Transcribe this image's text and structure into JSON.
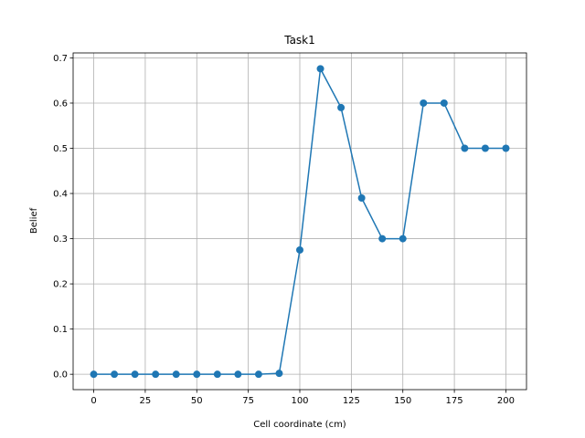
{
  "chart_data": {
    "type": "line",
    "title": "Task1",
    "xlabel": "Cell coordinate (cm)",
    "ylabel": "Belief",
    "xlim": [
      -10,
      210
    ],
    "ylim": [
      -0.034,
      0.711
    ],
    "xticks": [
      0,
      25,
      50,
      75,
      100,
      125,
      150,
      175,
      200
    ],
    "xtick_labels": [
      "0",
      "25",
      "50",
      "75",
      "100",
      "125",
      "150",
      "175",
      "200"
    ],
    "yticks": [
      0.0,
      0.1,
      0.2,
      0.3,
      0.4,
      0.5,
      0.6,
      0.7
    ],
    "ytick_labels": [
      "0.0",
      "0.1",
      "0.2",
      "0.3",
      "0.4",
      "0.5",
      "0.6",
      "0.7"
    ],
    "grid": true,
    "series": [
      {
        "color": "#1f77b4",
        "marker": "circle",
        "x": [
          0,
          10,
          20,
          30,
          40,
          50,
          60,
          70,
          80,
          90,
          100,
          110,
          120,
          130,
          140,
          150,
          160,
          170,
          180,
          190,
          200
        ],
        "y": [
          0,
          0,
          0,
          0,
          0,
          0,
          0,
          0,
          0,
          0.002,
          0.275,
          0.676,
          0.59,
          0.39,
          0.3,
          0.3,
          0.6,
          0.6,
          0.5,
          0.5,
          0.5
        ]
      }
    ]
  }
}
